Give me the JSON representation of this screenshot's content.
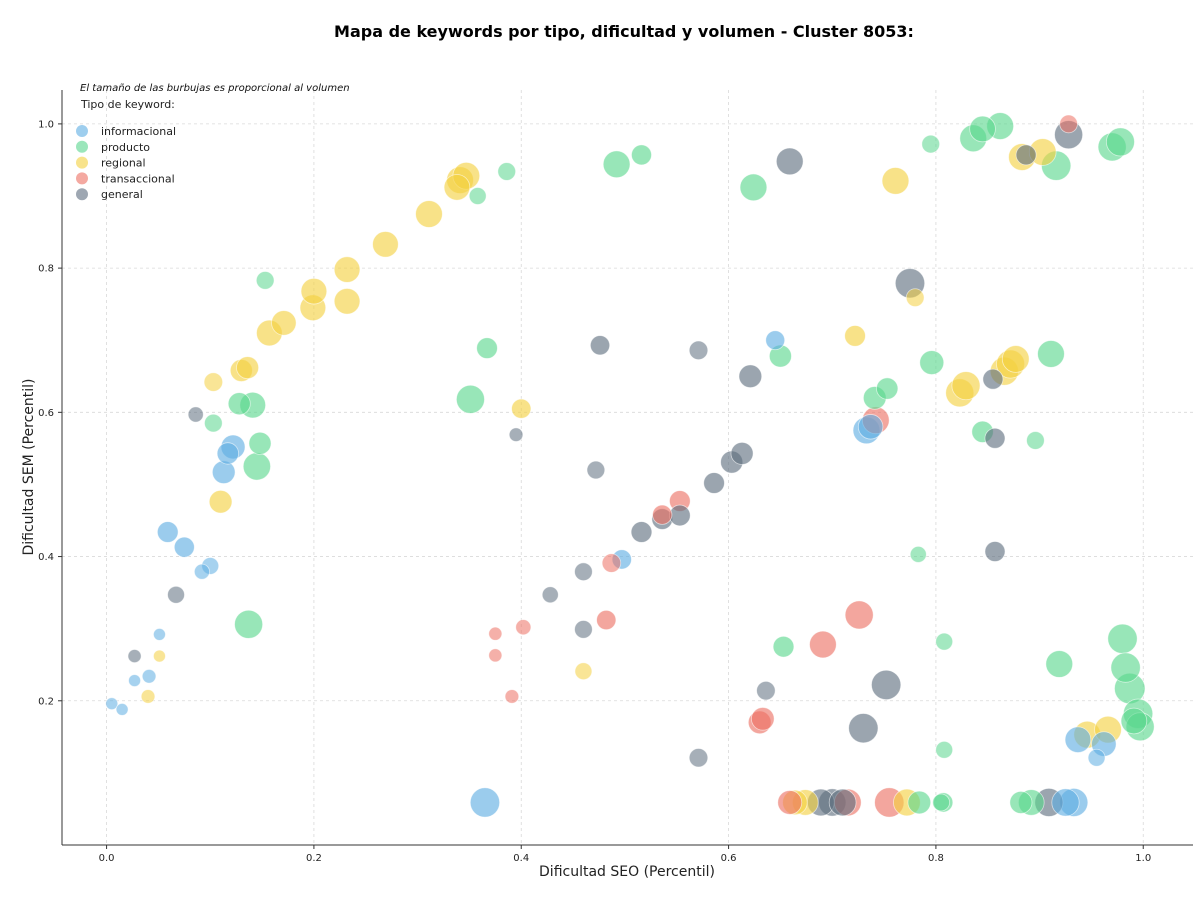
{
  "chart_data": {
    "type": "scatter",
    "title": "Mapa de keywords por tipo, dificultad y volumen - Cluster 8053:",
    "xlabel": "Dificultad SEO (Percentil)",
    "ylabel": "Dificultad SEM (Percentil)",
    "annotation": "El tamaño de las burbujas es proporcional al volumen",
    "legend_title": "Tipo de keyword:",
    "legend_position": "top-left",
    "grid": true,
    "xlim": [
      -0.043,
      1.048
    ],
    "ylim": [
      0.0,
      1.047
    ],
    "xticks": [
      "0.0",
      "0.2",
      "0.4",
      "0.6",
      "0.8",
      "1.0"
    ],
    "yticks": [
      "0.2",
      "0.4",
      "0.6",
      "0.8",
      "1.0"
    ],
    "xtick_values": [
      0.0,
      0.2,
      0.4,
      0.6,
      0.8,
      1.0
    ],
    "ytick_values": [
      0.2,
      0.4,
      0.6,
      0.8,
      1.0
    ],
    "series": [
      {
        "name": "informacional",
        "color": "#5dade2",
        "points": [
          {
            "x": 0.005,
            "y": 0.196,
            "v": 1
          },
          {
            "x": 0.015,
            "y": 0.188,
            "v": 1
          },
          {
            "x": 0.027,
            "y": 0.228,
            "v": 1
          },
          {
            "x": 0.041,
            "y": 0.234,
            "v": 1.3
          },
          {
            "x": 0.051,
            "y": 0.292,
            "v": 1
          },
          {
            "x": 0.059,
            "y": 0.434,
            "v": 3
          },
          {
            "x": 0.075,
            "y": 0.413,
            "v": 2.8
          },
          {
            "x": 0.092,
            "y": 0.379,
            "v": 1.6
          },
          {
            "x": 0.1,
            "y": 0.387,
            "v": 2
          },
          {
            "x": 0.113,
            "y": 0.517,
            "v": 3.6
          },
          {
            "x": 0.117,
            "y": 0.543,
            "v": 3.2
          },
          {
            "x": 0.122,
            "y": 0.552,
            "v": 4
          },
          {
            "x": 0.365,
            "y": 0.059,
            "v": 6
          },
          {
            "x": 0.497,
            "y": 0.396,
            "v": 2.6
          },
          {
            "x": 0.645,
            "y": 0.7,
            "v": 2.5
          },
          {
            "x": 0.733,
            "y": 0.575,
            "v": 5
          },
          {
            "x": 0.737,
            "y": 0.58,
            "v": 4.2
          },
          {
            "x": 0.937,
            "y": 0.146,
            "v": 4.6
          },
          {
            "x": 0.955,
            "y": 0.121,
            "v": 2
          },
          {
            "x": 0.962,
            "y": 0.14,
            "v": 4.2
          },
          {
            "x": 0.925,
            "y": 0.059,
            "v": 5.2
          },
          {
            "x": 0.933,
            "y": 0.059,
            "v": 5.5
          }
        ]
      },
      {
        "name": "producto",
        "color": "#58d68d",
        "points": [
          {
            "x": 0.103,
            "y": 0.585,
            "v": 2.2
          },
          {
            "x": 0.128,
            "y": 0.612,
            "v": 3.4
          },
          {
            "x": 0.141,
            "y": 0.61,
            "v": 4.6
          },
          {
            "x": 0.145,
            "y": 0.525,
            "v": 5.2
          },
          {
            "x": 0.148,
            "y": 0.557,
            "v": 3.4
          },
          {
            "x": 0.137,
            "y": 0.306,
            "v": 5.5
          },
          {
            "x": 0.153,
            "y": 0.783,
            "v": 2.2
          },
          {
            "x": 0.351,
            "y": 0.618,
            "v": 5.5
          },
          {
            "x": 0.358,
            "y": 0.9,
            "v": 2
          },
          {
            "x": 0.367,
            "y": 0.689,
            "v": 3
          },
          {
            "x": 0.386,
            "y": 0.934,
            "v": 2.2
          },
          {
            "x": 0.492,
            "y": 0.944,
            "v": 5
          },
          {
            "x": 0.516,
            "y": 0.957,
            "v": 2.8
          },
          {
            "x": 0.624,
            "y": 0.912,
            "v": 5
          },
          {
            "x": 0.65,
            "y": 0.678,
            "v": 3.4
          },
          {
            "x": 0.653,
            "y": 0.275,
            "v": 3
          },
          {
            "x": 0.741,
            "y": 0.62,
            "v": 3.6
          },
          {
            "x": 0.753,
            "y": 0.633,
            "v": 3.2
          },
          {
            "x": 0.783,
            "y": 0.403,
            "v": 1.8
          },
          {
            "x": 0.796,
            "y": 0.669,
            "v": 4
          },
          {
            "x": 0.795,
            "y": 0.972,
            "v": 2.2
          },
          {
            "x": 0.808,
            "y": 0.282,
            "v": 2
          },
          {
            "x": 0.808,
            "y": 0.132,
            "v": 2
          },
          {
            "x": 0.805,
            "y": 0.059,
            "v": 2
          },
          {
            "x": 0.784,
            "y": 0.059,
            "v": 3.6
          },
          {
            "x": 0.807,
            "y": 0.059,
            "v": 2.6
          },
          {
            "x": 0.845,
            "y": 0.573,
            "v": 3.2
          },
          {
            "x": 0.836,
            "y": 0.98,
            "v": 5
          },
          {
            "x": 0.845,
            "y": 0.993,
            "v": 4.6
          },
          {
            "x": 0.862,
            "y": 0.997,
            "v": 5
          },
          {
            "x": 0.882,
            "y": 0.059,
            "v": 3.4
          },
          {
            "x": 0.892,
            "y": 0.059,
            "v": 4.6
          },
          {
            "x": 0.896,
            "y": 0.561,
            "v": 2.2
          },
          {
            "x": 0.911,
            "y": 0.681,
            "v": 5
          },
          {
            "x": 0.916,
            "y": 0.942,
            "v": 6
          },
          {
            "x": 0.919,
            "y": 0.251,
            "v": 5
          },
          {
            "x": 0.97,
            "y": 0.968,
            "v": 5.5
          },
          {
            "x": 0.978,
            "y": 0.975,
            "v": 5.5
          },
          {
            "x": 0.98,
            "y": 0.286,
            "v": 6
          },
          {
            "x": 0.983,
            "y": 0.246,
            "v": 6
          },
          {
            "x": 0.987,
            "y": 0.217,
            "v": 6.5
          },
          {
            "x": 0.991,
            "y": 0.172,
            "v": 4.6
          },
          {
            "x": 0.995,
            "y": 0.182,
            "v": 6
          },
          {
            "x": 0.997,
            "y": 0.164,
            "v": 5.5
          }
        ]
      },
      {
        "name": "regional",
        "color": "#f4d03f",
        "points": [
          {
            "x": 0.04,
            "y": 0.206,
            "v": 1.3
          },
          {
            "x": 0.051,
            "y": 0.262,
            "v": 1
          },
          {
            "x": 0.103,
            "y": 0.642,
            "v": 2.4
          },
          {
            "x": 0.11,
            "y": 0.476,
            "v": 3.6
          },
          {
            "x": 0.13,
            "y": 0.658,
            "v": 3.4
          },
          {
            "x": 0.136,
            "y": 0.662,
            "v": 3.4
          },
          {
            "x": 0.157,
            "y": 0.71,
            "v": 4.6
          },
          {
            "x": 0.171,
            "y": 0.724,
            "v": 4.2
          },
          {
            "x": 0.199,
            "y": 0.745,
            "v": 4.6
          },
          {
            "x": 0.2,
            "y": 0.768,
            "v": 4.6
          },
          {
            "x": 0.232,
            "y": 0.754,
            "v": 4.6
          },
          {
            "x": 0.232,
            "y": 0.798,
            "v": 4.6
          },
          {
            "x": 0.269,
            "y": 0.833,
            "v": 4.6
          },
          {
            "x": 0.311,
            "y": 0.875,
            "v": 5
          },
          {
            "x": 0.338,
            "y": 0.912,
            "v": 4.6
          },
          {
            "x": 0.341,
            "y": 0.922,
            "v": 5
          },
          {
            "x": 0.347,
            "y": 0.928,
            "v": 5
          },
          {
            "x": 0.4,
            "y": 0.605,
            "v": 2.6
          },
          {
            "x": 0.46,
            "y": 0.241,
            "v": 2
          },
          {
            "x": 0.664,
            "y": 0.059,
            "v": 4.2
          },
          {
            "x": 0.674,
            "y": 0.059,
            "v": 4.6
          },
          {
            "x": 0.722,
            "y": 0.706,
            "v": 3
          },
          {
            "x": 0.761,
            "y": 0.921,
            "v": 5
          },
          {
            "x": 0.78,
            "y": 0.759,
            "v": 2.2
          },
          {
            "x": 0.772,
            "y": 0.059,
            "v": 5
          },
          {
            "x": 0.823,
            "y": 0.627,
            "v": 5.5
          },
          {
            "x": 0.829,
            "y": 0.637,
            "v": 5.5
          },
          {
            "x": 0.866,
            "y": 0.657,
            "v": 5.5
          },
          {
            "x": 0.872,
            "y": 0.667,
            "v": 5.5
          },
          {
            "x": 0.877,
            "y": 0.674,
            "v": 5
          },
          {
            "x": 0.883,
            "y": 0.954,
            "v": 5
          },
          {
            "x": 0.903,
            "y": 0.961,
            "v": 5
          },
          {
            "x": 0.946,
            "y": 0.153,
            "v": 5
          },
          {
            "x": 0.966,
            "y": 0.16,
            "v": 5
          }
        ]
      },
      {
        "name": "transaccional",
        "color": "#ec7063",
        "points": [
          {
            "x": 0.375,
            "y": 0.293,
            "v": 1.2
          },
          {
            "x": 0.375,
            "y": 0.263,
            "v": 1.2
          },
          {
            "x": 0.391,
            "y": 0.206,
            "v": 1.3
          },
          {
            "x": 0.402,
            "y": 0.302,
            "v": 1.6
          },
          {
            "x": 0.487,
            "y": 0.391,
            "v": 2.4
          },
          {
            "x": 0.482,
            "y": 0.312,
            "v": 2.6
          },
          {
            "x": 0.536,
            "y": 0.458,
            "v": 2.6
          },
          {
            "x": 0.553,
            "y": 0.477,
            "v": 3
          },
          {
            "x": 0.63,
            "y": 0.17,
            "v": 3.6
          },
          {
            "x": 0.633,
            "y": 0.175,
            "v": 3.6
          },
          {
            "x": 0.659,
            "y": 0.059,
            "v": 4
          },
          {
            "x": 0.691,
            "y": 0.278,
            "v": 5
          },
          {
            "x": 0.715,
            "y": 0.059,
            "v": 5
          },
          {
            "x": 0.726,
            "y": 0.319,
            "v": 5.5
          },
          {
            "x": 0.755,
            "y": 0.059,
            "v": 6
          },
          {
            "x": 0.742,
            "y": 0.589,
            "v": 5
          },
          {
            "x": 0.928,
            "y": 1.0,
            "v": 2.2
          }
        ]
      },
      {
        "name": "general",
        "color": "#5d6d7e",
        "points": [
          {
            "x": 0.086,
            "y": 0.597,
            "v": 1.6
          },
          {
            "x": 0.067,
            "y": 0.347,
            "v": 2
          },
          {
            "x": 0.027,
            "y": 0.262,
            "v": 1.2
          },
          {
            "x": 0.395,
            "y": 0.569,
            "v": 1.3
          },
          {
            "x": 0.428,
            "y": 0.347,
            "v": 1.8
          },
          {
            "x": 0.46,
            "y": 0.299,
            "v": 2.2
          },
          {
            "x": 0.46,
            "y": 0.379,
            "v": 2.2
          },
          {
            "x": 0.472,
            "y": 0.52,
            "v": 2.2
          },
          {
            "x": 0.476,
            "y": 0.693,
            "v": 2.6
          },
          {
            "x": 0.516,
            "y": 0.434,
            "v": 3
          },
          {
            "x": 0.536,
            "y": 0.452,
            "v": 3
          },
          {
            "x": 0.553,
            "y": 0.457,
            "v": 3
          },
          {
            "x": 0.571,
            "y": 0.686,
            "v": 2.4
          },
          {
            "x": 0.571,
            "y": 0.121,
            "v": 2.4
          },
          {
            "x": 0.586,
            "y": 0.502,
            "v": 3
          },
          {
            "x": 0.603,
            "y": 0.531,
            "v": 3.4
          },
          {
            "x": 0.613,
            "y": 0.543,
            "v": 3.4
          },
          {
            "x": 0.621,
            "y": 0.65,
            "v": 3.6
          },
          {
            "x": 0.636,
            "y": 0.214,
            "v": 2.4
          },
          {
            "x": 0.659,
            "y": 0.948,
            "v": 5
          },
          {
            "x": 0.689,
            "y": 0.059,
            "v": 5
          },
          {
            "x": 0.7,
            "y": 0.059,
            "v": 5.2
          },
          {
            "x": 0.71,
            "y": 0.059,
            "v": 5
          },
          {
            "x": 0.73,
            "y": 0.162,
            "v": 6
          },
          {
            "x": 0.752,
            "y": 0.222,
            "v": 6
          },
          {
            "x": 0.775,
            "y": 0.779,
            "v": 6
          },
          {
            "x": 0.855,
            "y": 0.646,
            "v": 2.8
          },
          {
            "x": 0.857,
            "y": 0.564,
            "v": 2.8
          },
          {
            "x": 0.857,
            "y": 0.407,
            "v": 2.8
          },
          {
            "x": 0.887,
            "y": 0.957,
            "v": 2.8
          },
          {
            "x": 0.909,
            "y": 0.059,
            "v": 5.5
          },
          {
            "x": 0.928,
            "y": 0.985,
            "v": 5.5
          }
        ]
      }
    ]
  }
}
